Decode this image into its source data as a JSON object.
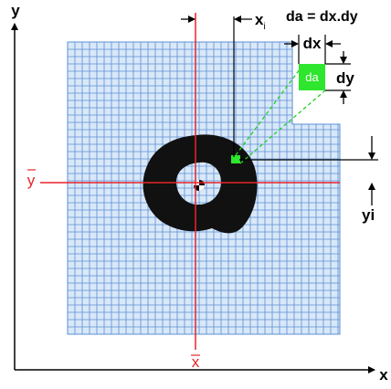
{
  "formula": "da = dx.dy",
  "axes": {
    "x_label": "x",
    "y_label": "y"
  },
  "centroid": {
    "x_bar_label": "x",
    "y_bar_label": "y"
  },
  "dimensions": {
    "xi_label": "x",
    "xi_subscript": "i",
    "yi_label": "yi",
    "dx_label": "dx",
    "dy_label": "dy",
    "da_label": "da"
  },
  "colors": {
    "grid": "#5b8fd6",
    "grid_fill": "#d9e8f8",
    "centroid_lines": "#e8242a",
    "element": "#2ee62e",
    "guide": "#1fd01f",
    "shape": "#111111",
    "ink": "#000000"
  }
}
